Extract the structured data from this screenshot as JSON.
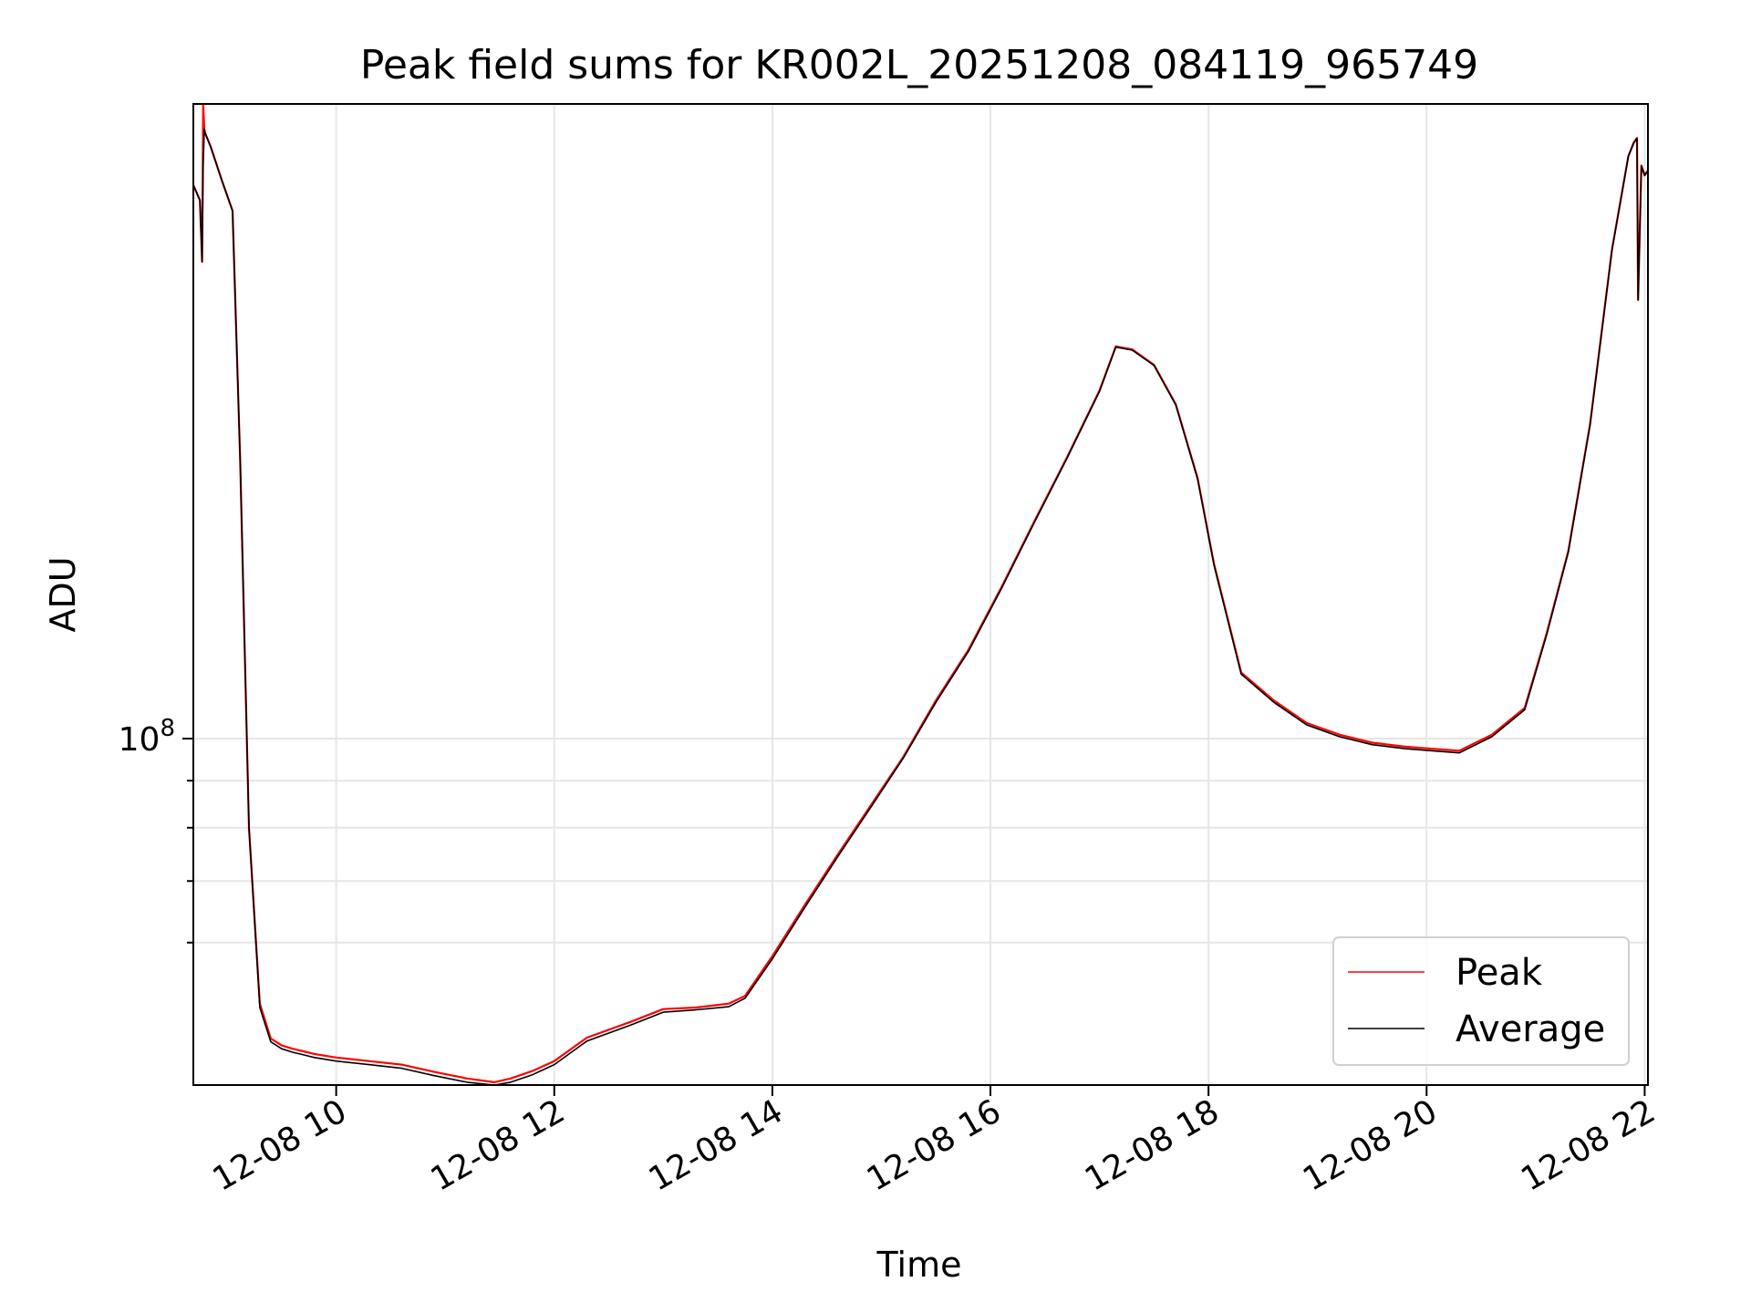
{
  "chart_data": {
    "type": "line",
    "title": "Peak field sums for KR002L_20251208_084119_965749",
    "xlabel": "Time",
    "ylabel": "ADU",
    "x_tick_labels": [
      "12-08 10",
      "12-08 12",
      "12-08 14",
      "12-08 16",
      "12-08 18",
      "12-08 20",
      "12-08 22"
    ],
    "x_ticks_hours": [
      10,
      12,
      14,
      16,
      18,
      20,
      22
    ],
    "xlim_hours": [
      8.69,
      22.03
    ],
    "y_scale": "log",
    "ylim": [
      42000000,
      490000000
    ],
    "y_major_ticks": [
      100000000
    ],
    "y_major_tick_label": "10",
    "y_major_tick_exp": "8",
    "y_minor_ticks": [
      60000000,
      70000000,
      80000000,
      90000000
    ],
    "grid": true,
    "legend_position": "lower right",
    "series": [
      {
        "name": "Peak",
        "color": "#ff0000",
        "x_hours": [
          8.69,
          8.75,
          8.77,
          8.78,
          8.78,
          8.79,
          8.8,
          8.85,
          8.95,
          9.05,
          9.12,
          9.2,
          9.3,
          9.4,
          9.5,
          9.6,
          9.7,
          9.8,
          10.0,
          10.3,
          10.6,
          10.9,
          11.2,
          11.45,
          11.6,
          11.8,
          12.0,
          12.3,
          12.7,
          13.0,
          13.3,
          13.6,
          13.75,
          14.0,
          14.3,
          14.6,
          14.9,
          15.2,
          15.5,
          15.8,
          16.1,
          16.4,
          16.7,
          17.0,
          17.15,
          17.3,
          17.5,
          17.7,
          17.9,
          18.05,
          18.3,
          18.6,
          18.9,
          19.2,
          19.5,
          19.8,
          20.0,
          20.3,
          20.6,
          20.9,
          21.1,
          21.3,
          21.5,
          21.7,
          21.85,
          21.9,
          21.93,
          21.94,
          21.97,
          22.0,
          22.03
        ],
        "values": [
          400000000,
          385000000,
          330000000,
          490000000,
          490000000,
          460000000,
          455000000,
          440000000,
          405000000,
          375000000,
          200000000,
          80000000,
          51500000,
          47200000,
          46400000,
          46000000,
          45700000,
          45400000,
          45000000,
          44600000,
          44200000,
          43400000,
          42700000,
          42300000,
          42700000,
          43500000,
          44600000,
          47300000,
          49200000,
          50800000,
          51000000,
          51500000,
          52500000,
          58000000,
          66000000,
          74800000,
          84500000,
          95500000,
          110000000,
          125000000,
          146000000,
          172000000,
          202000000,
          239000000,
          267000000,
          265000000,
          255000000,
          231000000,
          192000000,
          155000000,
          118000000,
          110000000,
          104000000,
          101000000,
          99000000,
          98000000,
          97600000,
          97000000,
          101000000,
          108000000,
          130000000,
          160000000,
          220000000,
          340000000,
          430000000,
          445000000,
          450000000,
          300000000,
          420000000,
          410000000,
          415000000
        ]
      },
      {
        "name": "Average",
        "color": "#000000",
        "x_hours": [
          8.69,
          8.75,
          8.77,
          8.78,
          8.79,
          8.8,
          8.85,
          8.95,
          9.05,
          9.12,
          9.2,
          9.3,
          9.4,
          9.5,
          9.6,
          9.7,
          9.8,
          10.0,
          10.3,
          10.6,
          10.9,
          11.2,
          11.45,
          11.6,
          11.8,
          12.0,
          12.3,
          12.7,
          13.0,
          13.3,
          13.6,
          13.75,
          14.0,
          14.3,
          14.6,
          14.9,
          15.2,
          15.5,
          15.8,
          16.1,
          16.4,
          16.7,
          17.0,
          17.15,
          17.3,
          17.5,
          17.7,
          17.9,
          18.05,
          18.3,
          18.6,
          18.9,
          19.2,
          19.5,
          19.8,
          20.0,
          20.3,
          20.6,
          20.9,
          21.1,
          21.3,
          21.5,
          21.7,
          21.85,
          21.9,
          21.93,
          21.94,
          21.97,
          22.0,
          22.03
        ],
        "values": [
          400000000,
          385000000,
          330000000,
          420000000,
          460000000,
          455000000,
          440000000,
          405000000,
          375000000,
          200000000,
          80000000,
          51000000,
          46800000,
          46000000,
          45600000,
          45300000,
          45000000,
          44600000,
          44200000,
          43800000,
          43000000,
          42300000,
          42000000,
          42300000,
          43100000,
          44200000,
          46900000,
          48800000,
          50400000,
          50700000,
          51100000,
          52200000,
          57600000,
          65600000,
          74400000,
          84100000,
          95200000,
          109500000,
          124500000,
          145500000,
          171500000,
          201500000,
          238500000,
          266500000,
          264500000,
          254500000,
          230500000,
          191500000,
          154500000,
          117500000,
          109500000,
          103500000,
          100500000,
          98500000,
          97500000,
          97100000,
          96500000,
          100500000,
          107500000,
          129500000,
          159500000,
          219500000,
          339500000,
          429500000,
          444500000,
          449500000,
          300000000,
          419500000,
          409500000,
          414500000
        ]
      }
    ]
  }
}
